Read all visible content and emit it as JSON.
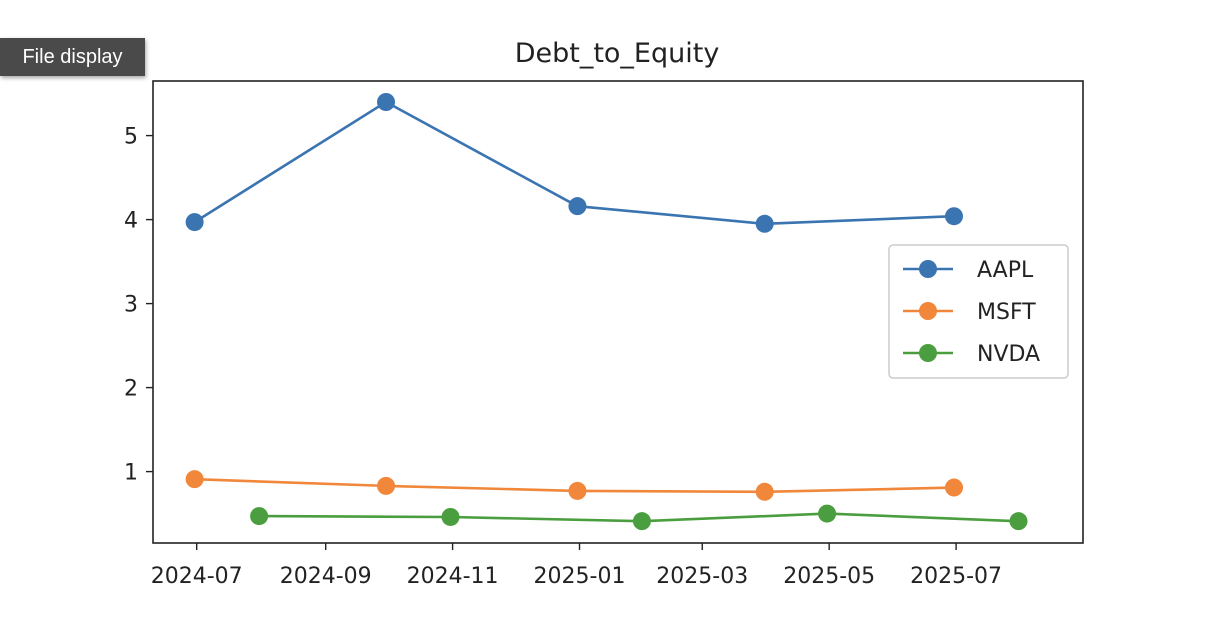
{
  "tooltip": {
    "label": "File display"
  },
  "chart_data": {
    "type": "line",
    "title": "Debt_to_Equity",
    "xlabel": "",
    "ylabel": "",
    "x_ticks": [
      "2024-07",
      "2024-09",
      "2024-11",
      "2025-01",
      "2025-03",
      "2025-05",
      "2025-07"
    ],
    "y_ticks": [
      1,
      2,
      3,
      4,
      5
    ],
    "xlim": [
      "2024-06-10",
      "2025-08-31"
    ],
    "ylim": [
      0.15,
      5.65
    ],
    "grid": false,
    "legend_position": "center-right",
    "series": [
      {
        "name": "AAPL",
        "color": "#3a74b1",
        "points": [
          {
            "x": "2024-06-30",
            "y": 3.97
          },
          {
            "x": "2024-09-30",
            "y": 5.4
          },
          {
            "x": "2024-12-31",
            "y": 4.16
          },
          {
            "x": "2025-03-31",
            "y": 3.95
          },
          {
            "x": "2025-06-30",
            "y": 4.04
          }
        ]
      },
      {
        "name": "MSFT",
        "color": "#f0873a",
        "points": [
          {
            "x": "2024-06-30",
            "y": 0.91
          },
          {
            "x": "2024-09-30",
            "y": 0.83
          },
          {
            "x": "2024-12-31",
            "y": 0.77
          },
          {
            "x": "2025-03-31",
            "y": 0.76
          },
          {
            "x": "2025-06-30",
            "y": 0.81
          }
        ]
      },
      {
        "name": "NVDA",
        "color": "#4b9e3f",
        "points": [
          {
            "x": "2024-07-31",
            "y": 0.47
          },
          {
            "x": "2024-10-31",
            "y": 0.46
          },
          {
            "x": "2025-01-31",
            "y": 0.41
          },
          {
            "x": "2025-04-30",
            "y": 0.5
          },
          {
            "x": "2025-07-31",
            "y": 0.41
          }
        ]
      }
    ]
  }
}
